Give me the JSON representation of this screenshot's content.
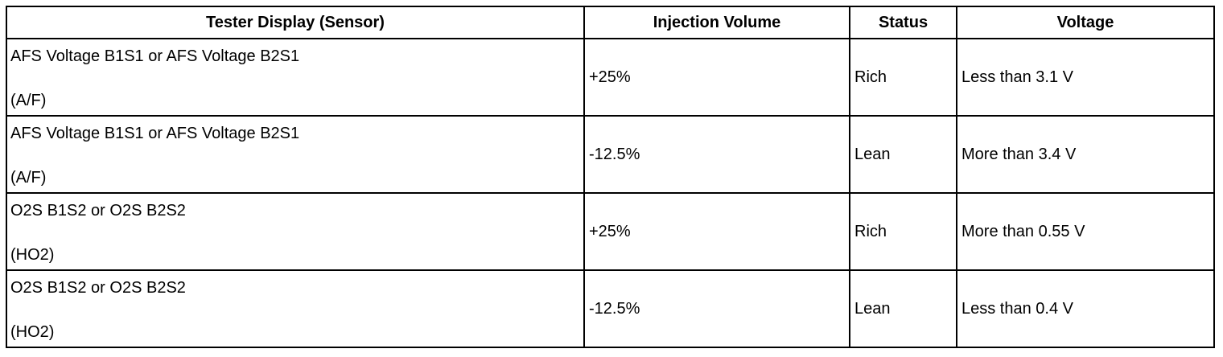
{
  "table": {
    "headers": [
      "Tester Display (Sensor)",
      "Injection Volume",
      "Status",
      "Voltage"
    ],
    "rows": [
      {
        "sensor": "AFS Voltage B1S1 or AFS Voltage B2S1",
        "sensor_type": "(A/F)",
        "injection_volume": "+25%",
        "status": "Rich",
        "voltage": "Less than 3.1 V"
      },
      {
        "sensor": "AFS Voltage B1S1 or AFS Voltage B2S1",
        "sensor_type": "(A/F)",
        "injection_volume": "-12.5%",
        "status": "Lean",
        "voltage": "More than 3.4 V"
      },
      {
        "sensor": "O2S B1S2 or O2S B2S2",
        "sensor_type": "(HO2)",
        "injection_volume": "+25%",
        "status": "Rich",
        "voltage": "More than 0.55 V"
      },
      {
        "sensor": "O2S B1S2 or O2S B2S2",
        "sensor_type": "(HO2)",
        "injection_volume": "-12.5%",
        "status": "Lean",
        "voltage": "Less than 0.4 V"
      }
    ]
  }
}
